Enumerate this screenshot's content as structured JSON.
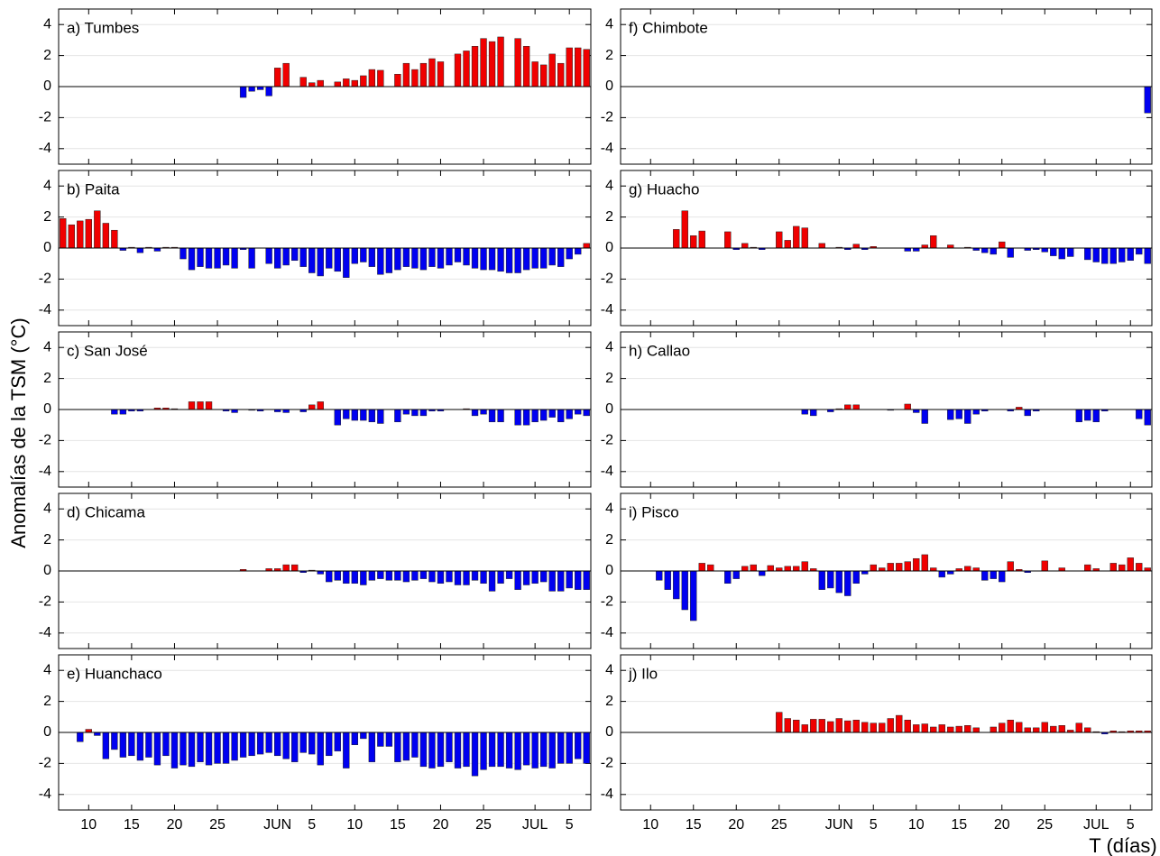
{
  "shared_axes": {
    "ylabel": "Anomalías de la TSM (°C)",
    "xlabel": "T (días)",
    "x": [
      7,
      8,
      9,
      10,
      11,
      12,
      13,
      14,
      15,
      16,
      17,
      18,
      19,
      20,
      21,
      22,
      23,
      24,
      25,
      26,
      27,
      28,
      29,
      30,
      31,
      32,
      33,
      34,
      35,
      36,
      37,
      38,
      39,
      40,
      41,
      42,
      43,
      44,
      45,
      46,
      47,
      48,
      49,
      50,
      51,
      52,
      53,
      54,
      55,
      56,
      57,
      58,
      59,
      60,
      61,
      62,
      63,
      64,
      65,
      66,
      67,
      68
    ],
    "xlim": [
      6.5,
      68.5
    ],
    "xticks": [
      10,
      15,
      20,
      25,
      {
        "value": 32,
        "label": "JUN"
      },
      {
        "value": 36,
        "label": "5"
      },
      {
        "value": 41,
        "label": "10"
      },
      {
        "value": 46,
        "label": "15"
      },
      {
        "value": 51,
        "label": "20"
      },
      {
        "value": 56,
        "label": "25"
      },
      {
        "value": 62,
        "label": "JUL"
      },
      {
        "value": 66,
        "label": "5"
      }
    ],
    "ylim": [
      -5,
      5
    ],
    "yticks": [
      -4,
      -2,
      0,
      2,
      4
    ],
    "grid": true,
    "positive_color": "#f00000",
    "negative_color": "#0000f0"
  },
  "chart_data": [
    {
      "type": "bar",
      "title": "a) Tumbes",
      "values": [
        null,
        null,
        null,
        null,
        null,
        null,
        null,
        null,
        null,
        null,
        null,
        null,
        null,
        null,
        null,
        null,
        null,
        null,
        null,
        null,
        null,
        -0.7,
        -0.3,
        -0.2,
        -0.6,
        1.2,
        1.5,
        null,
        0.6,
        0.25,
        0.4,
        null,
        0.3,
        0.5,
        0.4,
        0.7,
        1.1,
        1.05,
        null,
        0.8,
        1.5,
        1.1,
        1.5,
        1.8,
        1.6,
        null,
        2.1,
        2.3,
        2.6,
        3.1,
        2.9,
        3.2,
        null,
        3.1,
        2.6,
        1.6,
        1.4,
        2.1,
        1.5,
        2.5,
        2.5,
        2.4
      ]
    },
    {
      "type": "bar",
      "title": "b) Paita",
      "values": [
        1.9,
        1.5,
        1.75,
        1.85,
        2.4,
        1.6,
        1.15,
        -0.15,
        0.05,
        -0.3,
        0.05,
        -0.2,
        0.05,
        0.05,
        -0.7,
        -1.4,
        -1.2,
        -1.3,
        -1.3,
        -1.1,
        -1.3,
        -0.1,
        -1.3,
        null,
        -1.0,
        -1.3,
        -1.1,
        -0.8,
        -1.2,
        -1.6,
        -1.8,
        -1.3,
        -1.5,
        -1.9,
        -1.0,
        -0.9,
        -1.2,
        -1.7,
        -1.6,
        -1.4,
        -1.2,
        -1.3,
        -1.4,
        -1.2,
        -1.3,
        -1.1,
        -0.9,
        -1.1,
        -1.3,
        -1.4,
        -1.4,
        -1.5,
        -1.6,
        -1.6,
        -1.4,
        -1.3,
        -1.3,
        -1.1,
        -1.2,
        -0.7,
        -0.4,
        0.3
      ]
    },
    {
      "type": "bar",
      "title": "c) San José",
      "values": [
        null,
        null,
        null,
        null,
        null,
        null,
        -0.3,
        -0.3,
        -0.1,
        -0.1,
        null,
        0.1,
        0.1,
        0.05,
        null,
        0.5,
        0.5,
        0.5,
        null,
        -0.1,
        -0.2,
        null,
        -0.05,
        -0.1,
        null,
        -0.15,
        -0.2,
        null,
        -0.15,
        0.3,
        0.5,
        null,
        -1.0,
        -0.6,
        -0.7,
        -0.7,
        -0.8,
        -0.9,
        null,
        -0.8,
        -0.3,
        -0.4,
        -0.4,
        -0.1,
        -0.1,
        null,
        null,
        0.05,
        -0.4,
        -0.3,
        -0.8,
        -0.8,
        null,
        -1.0,
        -1.0,
        -0.8,
        -0.7,
        -0.5,
        -0.8,
        -0.6,
        -0.3,
        -0.4
      ]
    },
    {
      "type": "bar",
      "title": "d) Chicama",
      "values": [
        null,
        null,
        null,
        null,
        null,
        null,
        null,
        null,
        null,
        null,
        null,
        null,
        null,
        null,
        null,
        null,
        null,
        null,
        null,
        null,
        null,
        0.1,
        null,
        null,
        0.15,
        0.15,
        0.4,
        0.4,
        -0.1,
        0.05,
        -0.2,
        -0.7,
        -0.6,
        -0.8,
        -0.8,
        -0.9,
        -0.6,
        -0.5,
        -0.6,
        -0.6,
        -0.7,
        -0.6,
        -0.5,
        -0.7,
        -0.8,
        -0.7,
        -0.9,
        -0.9,
        -0.6,
        -0.8,
        -1.3,
        -0.8,
        -0.5,
        -1.2,
        -0.9,
        -0.8,
        -0.7,
        -1.3,
        -1.3,
        -1.1,
        -1.2,
        -1.2
      ]
    },
    {
      "type": "bar",
      "title": "e) Huanchaco",
      "values": [
        null,
        null,
        -0.6,
        0.2,
        -0.2,
        -1.7,
        -1.1,
        -1.6,
        -1.5,
        -1.8,
        -1.6,
        -2.1,
        -1.5,
        -2.3,
        -2.1,
        -2.2,
        -1.9,
        -2.1,
        -2.0,
        -2.0,
        -1.8,
        -1.6,
        -1.5,
        -1.4,
        -1.3,
        -1.5,
        -1.7,
        -1.9,
        -1.3,
        -1.4,
        -2.1,
        -1.5,
        -1.2,
        -2.3,
        -0.8,
        -0.4,
        -1.9,
        -0.9,
        -0.9,
        -1.9,
        -1.8,
        -1.6,
        -2.2,
        -2.3,
        -2.2,
        -1.9,
        -2.3,
        -2.2,
        -2.8,
        -2.4,
        -2.2,
        -2.2,
        -2.3,
        -2.4,
        -2.1,
        -2.3,
        -2.2,
        -2.3,
        -2.0,
        -2.0,
        -1.7,
        -2.0
      ]
    },
    {
      "type": "bar",
      "title": "f) Chimbote",
      "values": [
        null,
        null,
        null,
        null,
        null,
        null,
        null,
        null,
        null,
        null,
        null,
        null,
        null,
        null,
        null,
        null,
        null,
        null,
        null,
        null,
        null,
        null,
        null,
        null,
        null,
        null,
        null,
        null,
        null,
        null,
        null,
        null,
        null,
        null,
        null,
        null,
        null,
        null,
        null,
        null,
        null,
        null,
        null,
        null,
        null,
        null,
        null,
        null,
        null,
        null,
        null,
        null,
        null,
        null,
        null,
        null,
        null,
        null,
        null,
        null,
        null,
        -1.7
      ]
    },
    {
      "type": "bar",
      "title": "g) Huacho",
      "values": [
        null,
        null,
        null,
        null,
        null,
        null,
        1.2,
        2.4,
        0.8,
        1.1,
        null,
        null,
        1.05,
        -0.1,
        0.3,
        0.05,
        -0.1,
        null,
        1.05,
        0.5,
        1.4,
        1.3,
        null,
        0.3,
        null,
        0.05,
        -0.1,
        0.25,
        -0.1,
        0.1,
        null,
        null,
        null,
        -0.2,
        -0.2,
        0.2,
        0.8,
        null,
        0.2,
        null,
        0.05,
        -0.15,
        -0.3,
        -0.4,
        0.4,
        -0.6,
        null,
        -0.15,
        -0.1,
        -0.25,
        -0.5,
        -0.7,
        -0.55,
        null,
        -0.75,
        -0.9,
        -1.0,
        -1.0,
        -0.9,
        -0.8,
        -0.4,
        -1.0
      ]
    },
    {
      "type": "bar",
      "title": "h) Callao",
      "values": [
        null,
        null,
        null,
        null,
        null,
        null,
        null,
        null,
        null,
        null,
        null,
        null,
        null,
        null,
        null,
        null,
        null,
        null,
        null,
        null,
        null,
        -0.3,
        -0.4,
        null,
        -0.15,
        0.05,
        0.3,
        0.3,
        null,
        null,
        null,
        -0.05,
        null,
        0.35,
        -0.2,
        -0.9,
        null,
        null,
        -0.65,
        -0.6,
        -0.9,
        -0.3,
        -0.1,
        null,
        null,
        -0.1,
        0.15,
        -0.4,
        -0.1,
        null,
        null,
        null,
        null,
        -0.8,
        -0.7,
        -0.8,
        -0.1,
        null,
        null,
        null,
        -0.6,
        -1.0
      ]
    },
    {
      "type": "bar",
      "title": "i) Pisco",
      "values": [
        null,
        null,
        null,
        null,
        -0.6,
        -1.2,
        -1.8,
        -2.5,
        -3.2,
        0.5,
        0.4,
        null,
        -0.8,
        -0.5,
        0.3,
        0.4,
        -0.3,
        0.35,
        0.2,
        0.3,
        0.3,
        0.6,
        0.15,
        -1.2,
        -1.1,
        -1.4,
        -1.6,
        -0.8,
        -0.2,
        0.4,
        0.2,
        0.5,
        0.5,
        0.6,
        0.8,
        1.05,
        0.2,
        -0.4,
        -0.2,
        0.15,
        0.3,
        0.2,
        -0.6,
        -0.5,
        -0.7,
        0.6,
        0.1,
        -0.1,
        null,
        0.65,
        null,
        0.2,
        null,
        null,
        0.4,
        0.15,
        null,
        0.5,
        0.4,
        0.85,
        0.5,
        0.2
      ]
    },
    {
      "type": "bar",
      "title": "j) Ilo",
      "values": [
        null,
        null,
        null,
        null,
        null,
        null,
        null,
        null,
        null,
        null,
        null,
        null,
        null,
        null,
        null,
        null,
        null,
        null,
        1.3,
        0.9,
        0.8,
        0.5,
        0.85,
        0.85,
        0.7,
        0.9,
        0.75,
        0.8,
        0.65,
        0.6,
        0.6,
        0.9,
        1.1,
        0.8,
        0.5,
        0.55,
        0.35,
        0.5,
        0.35,
        0.4,
        0.45,
        0.3,
        null,
        0.35,
        0.6,
        0.8,
        0.65,
        0.3,
        0.3,
        0.65,
        0.4,
        0.45,
        0.15,
        0.6,
        0.3,
        0.05,
        -0.1,
        0.1,
        0.05,
        0.1,
        0.1,
        0.1
      ]
    }
  ]
}
